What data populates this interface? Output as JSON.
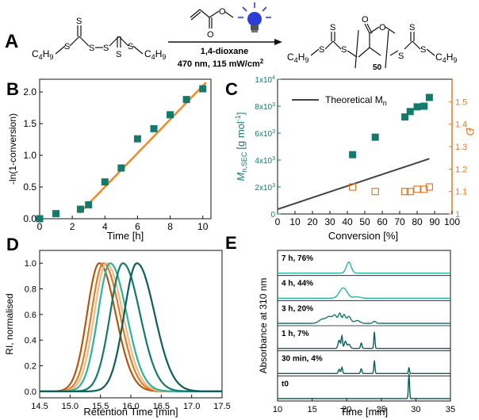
{
  "panels": {
    "A": {
      "letter": "A",
      "reactant_groups": {
        "left": "C4H9",
        "right": "C4H9"
      },
      "atoms": {
        "S": "S"
      },
      "conditions": {
        "solvent": "1,4-dioxane",
        "light": "470 nm, 115 mW/cm",
        "light_exp": "2"
      },
      "product": {
        "subscript": "50",
        "left_group": "C4H9",
        "right_group": "C4H9"
      }
    },
    "B": {
      "letter": "B"
    },
    "C": {
      "letter": "C"
    },
    "D": {
      "letter": "D"
    },
    "E": {
      "letter": "E"
    }
  },
  "colors": {
    "teal_dark": "#0e5e59",
    "teal": "#137a70",
    "teal_light": "#29b3a0",
    "peach": "#f4b985",
    "orange": "#e07b22",
    "brown": "#b5560f",
    "line_orange": "#f08a25",
    "teal_square": "#137a6c",
    "theory": "#444444",
    "bulb_blue": "#2b3fd6"
  },
  "chart_data": [
    {
      "panel": "B",
      "type": "scatter",
      "xlabel": "Time [h]",
      "ylabel": "-ln(1-conversion)",
      "xlim": [
        0,
        10.5
      ],
      "ylim": [
        0,
        2.2
      ],
      "xticks": [
        0,
        2,
        4,
        6,
        8,
        10
      ],
      "yticks": [
        0.0,
        0.5,
        1.0,
        1.5,
        2.0
      ],
      "points": [
        {
          "x": 0,
          "y": 0.0
        },
        {
          "x": 1,
          "y": 0.08
        },
        {
          "x": 2.5,
          "y": 0.15
        },
        {
          "x": 3,
          "y": 0.22
        },
        {
          "x": 4,
          "y": 0.58
        },
        {
          "x": 5,
          "y": 0.8
        },
        {
          "x": 6,
          "y": 1.26
        },
        {
          "x": 7,
          "y": 1.42
        },
        {
          "x": 8,
          "y": 1.64
        },
        {
          "x": 9,
          "y": 1.88
        },
        {
          "x": 10,
          "y": 2.05
        }
      ],
      "fit": [
        {
          "x": 2.45,
          "y": 0.09
        },
        {
          "x": 10.2,
          "y": 2.15
        }
      ]
    },
    {
      "panel": "C",
      "type": "scatter",
      "xlabel": "Conversion [%]",
      "ylabel": "M",
      "ylabel_sub": "n,SEC",
      "ylabel_unit": "[g mol",
      "ylabel_unit_sup": "-1",
      "ylabel_close": "]",
      "y2label": "Đ",
      "xlim": [
        0,
        100
      ],
      "ylim": [
        0,
        10000
      ],
      "y2lim": [
        1.0,
        1.6
      ],
      "xticks": [
        0,
        10,
        20,
        30,
        40,
        50,
        60,
        70,
        80,
        90,
        100
      ],
      "yticks": [
        {
          "v": 0,
          "base": "0",
          "exp": ""
        },
        {
          "v": 2000,
          "base": "2x10",
          "exp": "3"
        },
        {
          "v": 4000,
          "base": "4x10",
          "exp": "3"
        },
        {
          "v": 6000,
          "base": "6x10",
          "exp": "3"
        },
        {
          "v": 8000,
          "base": "8x10",
          "exp": "3"
        },
        {
          "v": 10000,
          "base": "1x10",
          "exp": "4"
        }
      ],
      "y2ticks": [
        1.0,
        1.1,
        1.2,
        1.3,
        1.4,
        1.5
      ],
      "legend": {
        "label": "Theoretical M",
        "sub": "n"
      },
      "theoretical": [
        {
          "x": 0,
          "y": 350
        },
        {
          "x": 87,
          "y": 4100
        }
      ],
      "mn": [
        {
          "x": 43,
          "y": 4400
        },
        {
          "x": 56,
          "y": 5700
        },
        {
          "x": 73,
          "y": 7200
        },
        {
          "x": 76,
          "y": 7600
        },
        {
          "x": 80,
          "y": 7950
        },
        {
          "x": 84,
          "y": 8000
        },
        {
          "x": 87,
          "y": 8650
        }
      ],
      "dispersity": [
        {
          "x": 43,
          "y": 1.12
        },
        {
          "x": 56,
          "y": 1.1
        },
        {
          "x": 73,
          "y": 1.1
        },
        {
          "x": 76,
          "y": 1.1
        },
        {
          "x": 80,
          "y": 1.11
        },
        {
          "x": 84,
          "y": 1.11
        },
        {
          "x": 87,
          "y": 1.12
        }
      ]
    },
    {
      "panel": "D",
      "type": "line",
      "xlabel": "Retention Time [min]",
      "ylabel": "RI, normalised",
      "xlim": [
        14.5,
        17.5
      ],
      "ylim": [
        -0.05,
        1.1
      ],
      "xticks": [
        14.5,
        15.0,
        15.5,
        16.0,
        16.5,
        17.0,
        17.5
      ],
      "yticks": [
        0.0,
        0.2,
        0.4,
        0.6,
        0.8,
        1.0
      ],
      "series": [
        {
          "peak": 15.48,
          "sl": 0.2,
          "sr": 0.27,
          "color": "brown"
        },
        {
          "peak": 15.55,
          "sl": 0.2,
          "sr": 0.27,
          "color": "orange"
        },
        {
          "peak": 15.6,
          "sl": 0.2,
          "sr": 0.27,
          "color": "peach"
        },
        {
          "peak": 15.66,
          "sl": 0.2,
          "sr": 0.27,
          "color": "teal_light"
        },
        {
          "peak": 15.87,
          "sl": 0.21,
          "sr": 0.28,
          "color": "teal"
        },
        {
          "peak": 16.1,
          "sl": 0.21,
          "sr": 0.29,
          "color": "teal_dark"
        }
      ]
    },
    {
      "panel": "E",
      "type": "line",
      "xlabel": "Time [min]",
      "ylabel": "Absorbance at 310 nm",
      "xlim": [
        10,
        35
      ],
      "xticks": [
        10,
        15,
        20,
        25,
        30,
        35
      ],
      "traces": [
        {
          "label": "7 h, 76%",
          "color": "teal_light",
          "peaks": [
            [
              20.3,
              0.8,
              0.35
            ]
          ]
        },
        {
          "label": "4 h, 44%",
          "color": "teal_light",
          "peaks": [
            [
              19.5,
              0.75,
              0.55
            ],
            [
              21.5,
              0.1,
              0.5
            ]
          ]
        },
        {
          "label": "3 h, 20%",
          "color": "teal",
          "peaks": [
            [
              16.5,
              0.3,
              0.5
            ],
            [
              17.5,
              0.45,
              0.4
            ],
            [
              18.3,
              0.55,
              0.3
            ],
            [
              19.0,
              0.7,
              0.2
            ],
            [
              19.6,
              0.6,
              0.2
            ],
            [
              20.3,
              0.5,
              0.3
            ],
            [
              21.5,
              0.2,
              0.4
            ],
            [
              24.0,
              0.15,
              0.2
            ]
          ]
        },
        {
          "label": "1 h, 7%",
          "color": "teal_dark",
          "peaks": [
            [
              18.9,
              0.6,
              0.15
            ],
            [
              19.3,
              0.9,
              0.1
            ],
            [
              19.8,
              0.5,
              0.15
            ],
            [
              20.3,
              0.3,
              0.2
            ],
            [
              22.1,
              0.4,
              0.1
            ],
            [
              24.0,
              1.2,
              0.08
            ]
          ]
        },
        {
          "label": "30 min, 4%",
          "color": "teal_dark",
          "peaks": [
            [
              18.9,
              0.3,
              0.12
            ],
            [
              19.3,
              0.45,
              0.1
            ],
            [
              22.1,
              0.35,
              0.1
            ],
            [
              24.0,
              0.95,
              0.08
            ],
            [
              29.0,
              0.45,
              0.07
            ]
          ]
        },
        {
          "label": "t0",
          "color": "teal_dark",
          "peaks": [
            [
              29.0,
              1.8,
              0.08
            ]
          ]
        }
      ]
    }
  ]
}
